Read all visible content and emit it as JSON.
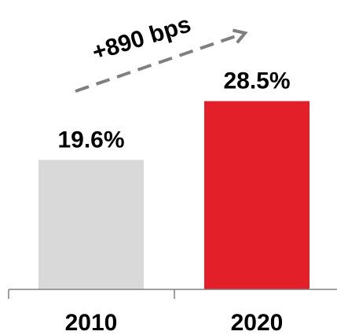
{
  "chart_data": {
    "type": "bar",
    "categories": [
      "2010",
      "2020"
    ],
    "values": [
      19.6,
      28.5
    ],
    "data_labels": [
      "19.6%",
      "28.5%"
    ],
    "value_unit": "%",
    "bar_colors": [
      "#d9d9d9",
      "#e3202a"
    ],
    "ylim": [
      0,
      32
    ],
    "grid": false,
    "legend": "none",
    "annotation": {
      "text": "+890 bps",
      "style": "dashed-arrow",
      "color": "#808080"
    }
  }
}
